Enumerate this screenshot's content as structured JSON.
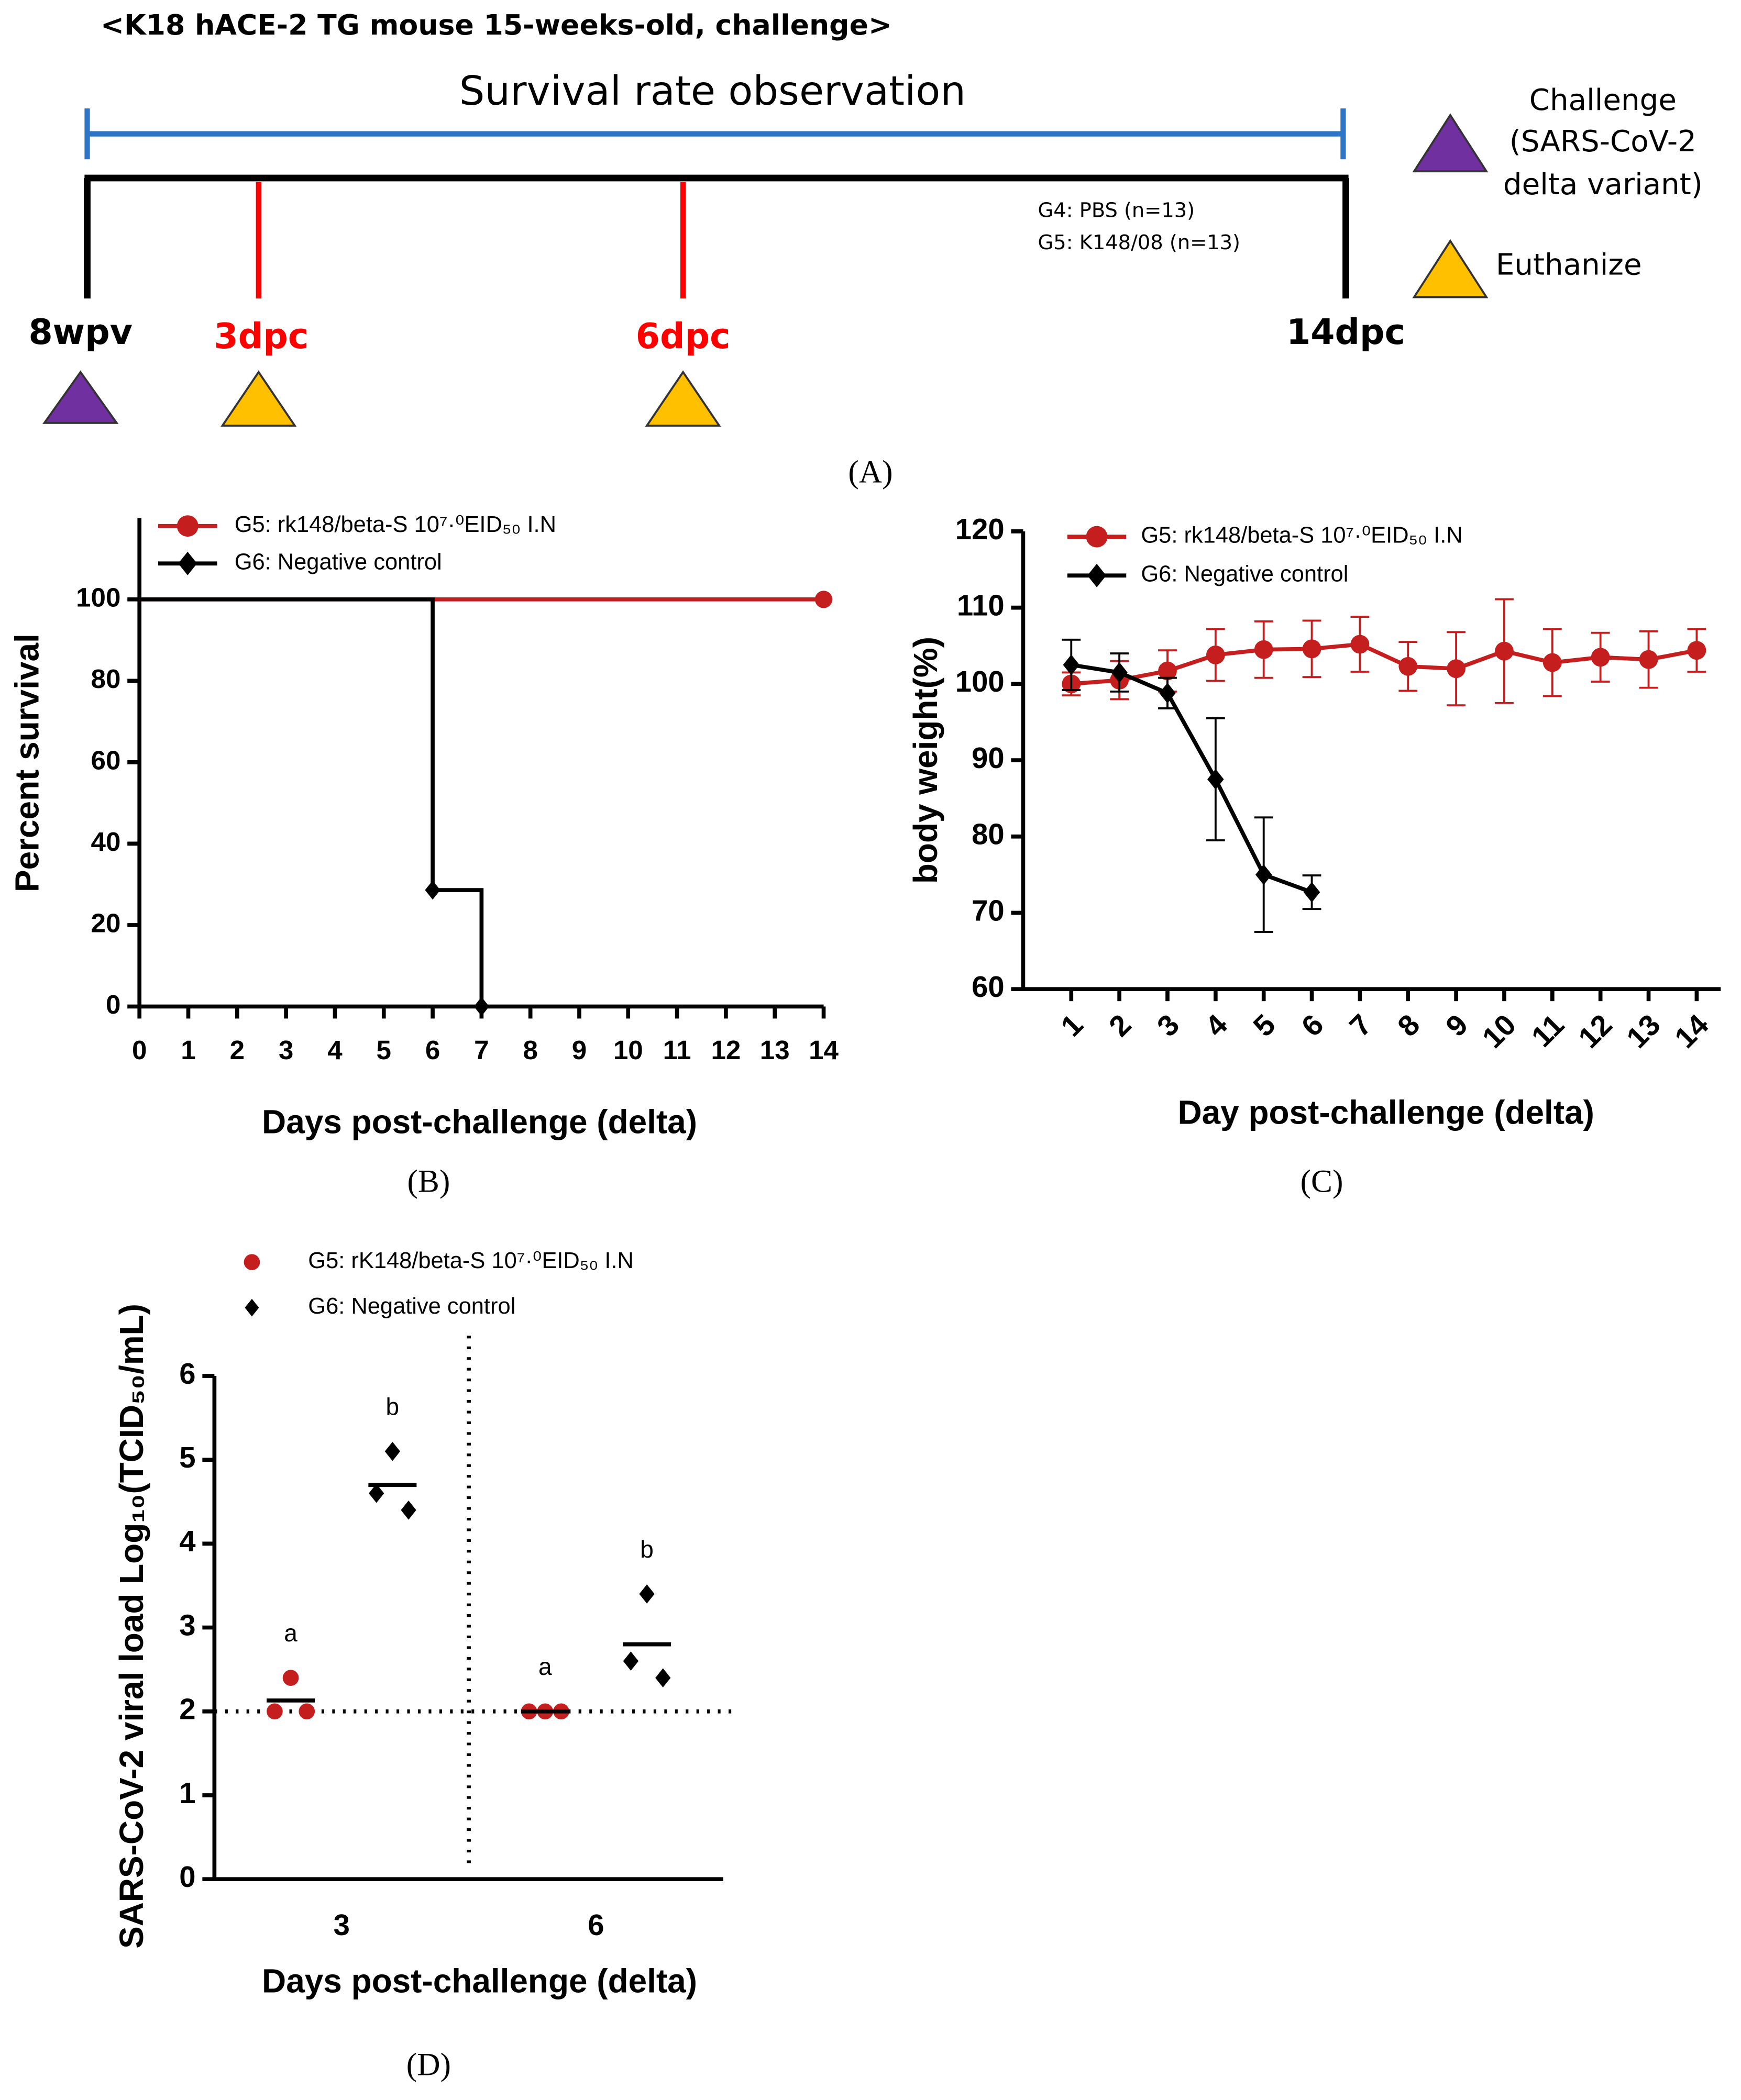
{
  "timeline": {
    "title": "<K18 hACE-2 TG mouse 15-weeks-old, challenge>",
    "bar_label": "Survival rate observation",
    "groups": [
      "G4: PBS (n=13)",
      "G5: K148/08 (n=13)"
    ],
    "markers": [
      "8wpv",
      "3dpc",
      "6dpc",
      "14dpc"
    ],
    "legend": [
      {
        "lines": [
          "Challenge",
          "(SARS-CoV-2",
          "delta variant)"
        ],
        "color": "#7030a0"
      },
      {
        "lines": [
          "Euthanize"
        ],
        "color": "#ffc000"
      }
    ],
    "panel_label": "(A)"
  },
  "chart_data": [
    {
      "type": "line",
      "step": true,
      "panel_label": "(B)",
      "xlabel": "Days post-challenge (delta)",
      "ylabel": "Percent survival",
      "xlim": [
        0,
        14
      ],
      "xticks": [
        0,
        1,
        2,
        3,
        4,
        5,
        6,
        7,
        8,
        9,
        10,
        11,
        12,
        13,
        14
      ],
      "ylim": [
        0,
        120
      ],
      "yticks": [
        0,
        20,
        40,
        60,
        80,
        100
      ],
      "series": [
        {
          "name": "G5: rk148/beta-S 10⁷·⁰EID₅₀ I.N",
          "color": "#c41e1e",
          "marker": "circle",
          "x": [
            0,
            14
          ],
          "values": [
            100,
            100
          ]
        },
        {
          "name": "G6: Negative control",
          "color": "#000000",
          "marker": "diamond",
          "x": [
            0,
            6,
            7
          ],
          "values": [
            100,
            28.6,
            0
          ]
        }
      ]
    },
    {
      "type": "line",
      "panel_label": "(C)",
      "xlabel": "Day post-challenge (delta)",
      "ylabel": "body weight(%)",
      "xlim": [
        0,
        14.5
      ],
      "xticks": [
        1,
        2,
        3,
        4,
        5,
        6,
        7,
        8,
        9,
        10,
        11,
        12,
        13,
        14
      ],
      "ylim": [
        60,
        120
      ],
      "yticks": [
        60,
        70,
        80,
        90,
        100,
        110,
        120
      ],
      "series": [
        {
          "name": "G5: rk148/beta-S 10⁷·⁰EID₅₀ I.N",
          "color": "#c41e1e",
          "marker": "circle",
          "x": [
            1,
            2,
            3,
            4,
            5,
            6,
            7,
            8,
            9,
            10,
            11,
            12,
            13,
            14
          ],
          "values": [
            100,
            100.5,
            101.7,
            103.8,
            104.5,
            104.6,
            105.2,
            102.3,
            102,
            104.3,
            102.8,
            103.5,
            103.2,
            104.4
          ],
          "errors": [
            1.5,
            2.5,
            2.7,
            3.4,
            3.7,
            3.7,
            3.6,
            3.2,
            4.8,
            6.8,
            4.4,
            3.2,
            3.7,
            2.8
          ]
        },
        {
          "name": "G6: Negative control",
          "color": "#000000",
          "marker": "diamond",
          "x": [
            1,
            2,
            3,
            4,
            5,
            6
          ],
          "values": [
            102.5,
            101.5,
            98.8,
            87.5,
            75,
            72.7
          ],
          "errors": [
            3.3,
            2.5,
            2,
            8,
            7.5,
            2.2
          ]
        }
      ]
    },
    {
      "type": "dot",
      "panel_label": "(D)",
      "xlabel": "Days post-challenge (delta)",
      "ylabel": "SARS-CoV-2 viral load Log₁₀(TCID₅₀/mL)",
      "categories": [
        "3",
        "6"
      ],
      "ylim": [
        0,
        6
      ],
      "yticks": [
        0,
        1,
        2,
        3,
        4,
        5,
        6
      ],
      "reference_line": 2,
      "series": [
        {
          "name": "G5: rK148/beta-S 10⁷·⁰EID₅₀ I.N",
          "color": "#c41e1e",
          "marker": "circle",
          "values": [
            [
              2.4,
              2,
              2
            ],
            [
              2,
              2,
              2
            ]
          ],
          "means": [
            2.13,
            2
          ],
          "letters": [
            "a",
            "a"
          ]
        },
        {
          "name": "G6: Negative control",
          "color": "#000000",
          "marker": "diamond",
          "values": [
            [
              5.1,
              4.6,
              4.4
            ],
            [
              3.4,
              2.6,
              2.4
            ]
          ],
          "means": [
            4.7,
            2.8
          ],
          "letters": [
            "b",
            "b"
          ]
        }
      ]
    }
  ]
}
